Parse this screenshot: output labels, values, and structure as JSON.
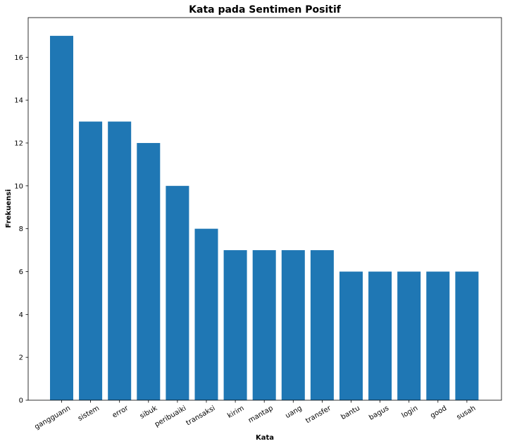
{
  "chart_data": {
    "type": "bar",
    "title": "Kata pada Sentimen Positif",
    "xlabel": "Kata",
    "ylabel": "Frekuensi",
    "categories": [
      "gangguann",
      "sistem",
      "error",
      "sibuk",
      "peribuaiki",
      "transaksi",
      "kirim",
      "mantap",
      "uang",
      "transfer",
      "bantu",
      "bagus",
      "login",
      "good",
      "susah"
    ],
    "values": [
      17,
      13,
      13,
      12,
      10,
      8,
      7,
      7,
      7,
      7,
      6,
      6,
      6,
      6,
      6
    ],
    "yticks": [
      "0",
      "2",
      "4",
      "6",
      "8",
      "10",
      "12",
      "14",
      "16"
    ],
    "ylim": [
      0,
      17.85
    ],
    "grid": false,
    "bar_color": "#1f77b4"
  }
}
